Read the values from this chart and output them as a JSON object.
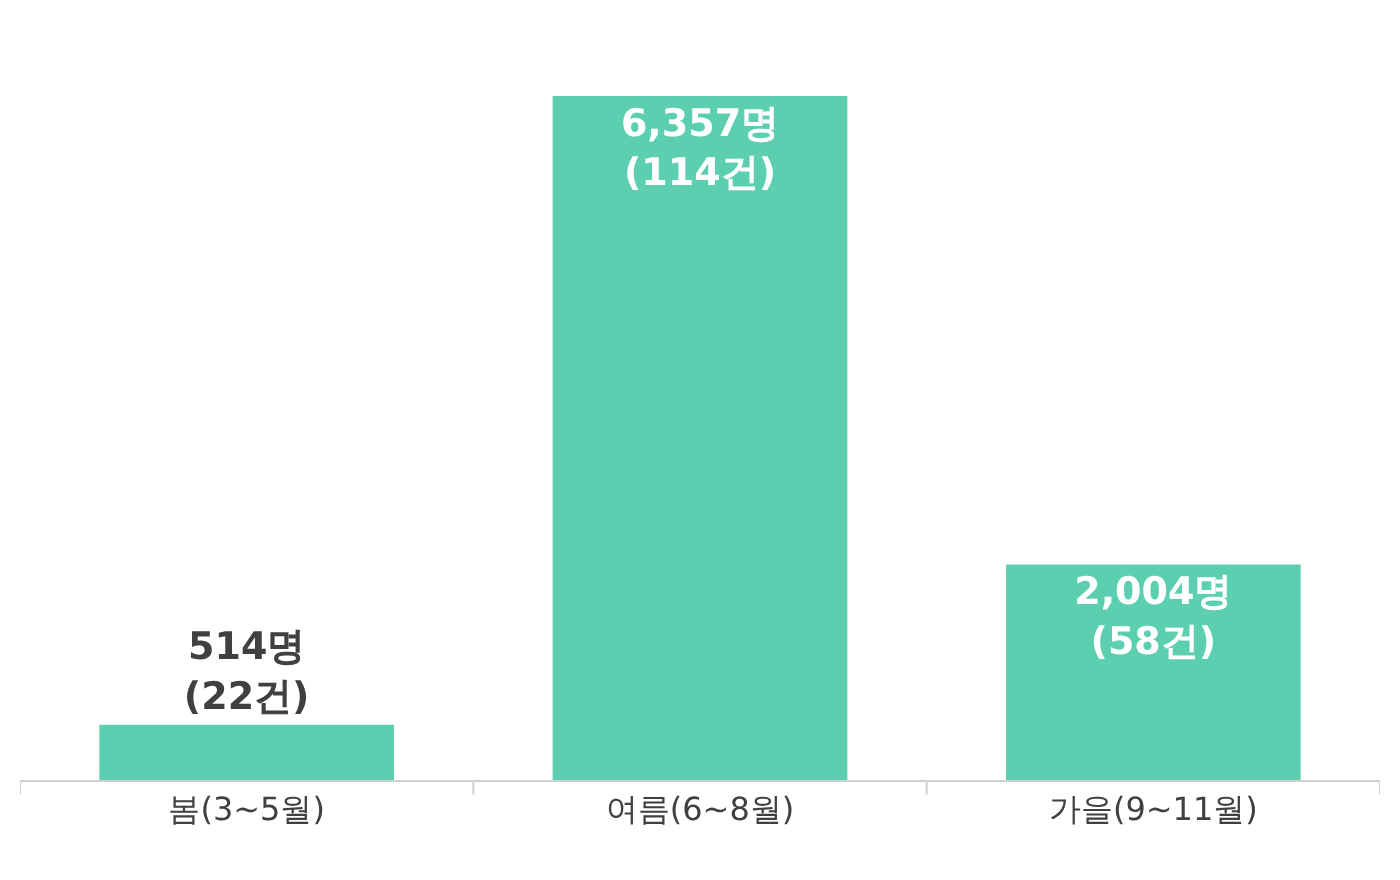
{
  "chart_data": {
    "type": "bar",
    "categories": [
      "봄(3~5월)",
      "여름(6~8월)",
      "가을(9~11월)"
    ],
    "values": [
      514,
      6357,
      2004
    ],
    "value_labels": [
      "514명\n(22건)",
      "6,357명\n(114건)",
      "2,004명\n(58건)"
    ],
    "color": "#5ccfb0"
  }
}
